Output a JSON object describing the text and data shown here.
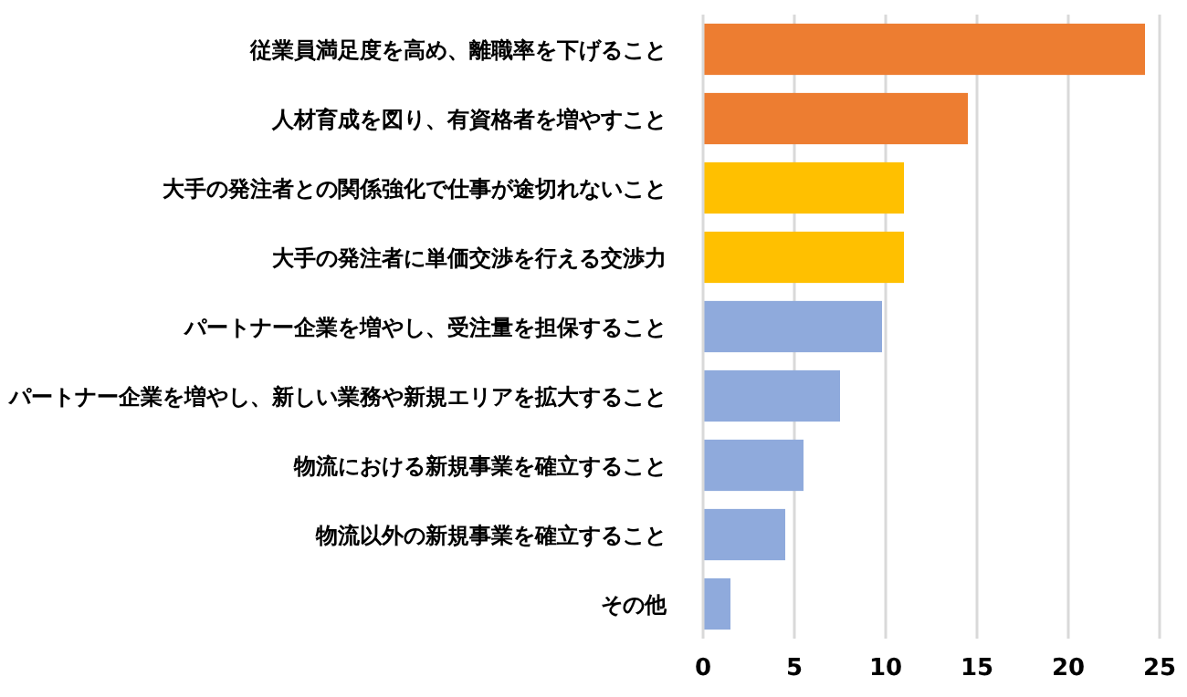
{
  "chart_data": {
    "type": "bar",
    "orientation": "horizontal",
    "categories": [
      "従業員満足度を高め、離職率を下げること",
      "人材育成を図り、有資格者を増やすこと",
      "大手の発注者との関係強化で仕事が途切れないこと",
      "大手の発注者に単価交渉を行える交渉力",
      "パートナー企業を増やし、受注量を担保すること",
      "パートナー企業を増やし、新しい業務や新規エリアを拡大すること",
      "物流における新規事業を確立すること",
      "物流以外の新規事業を確立すること",
      "その他"
    ],
    "values": [
      24.2,
      14.5,
      11,
      11,
      9.8,
      7.5,
      5.5,
      4.5,
      1.5
    ],
    "colors": [
      "#ed7d31",
      "#ed7d31",
      "#ffc000",
      "#ffc000",
      "#8faadc",
      "#8faadc",
      "#8faadc",
      "#8faadc",
      "#8faadc"
    ],
    "xlim": [
      0,
      25
    ],
    "xticks": [
      0,
      5,
      10,
      15,
      20,
      25
    ],
    "grid": "x"
  }
}
